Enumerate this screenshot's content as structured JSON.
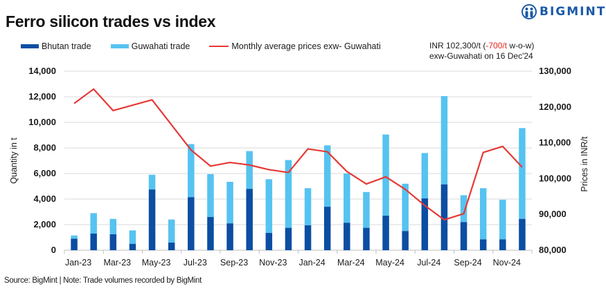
{
  "header": {
    "title": "Ferro silicon trades vs index",
    "logo_text": "BIGMINT",
    "logo_icon": "bigmint-people-icon"
  },
  "legend": {
    "items": [
      {
        "label": "Bhutan trade",
        "type": "bar",
        "color": "#0b4ea2"
      },
      {
        "label": "Guwahati trade",
        "type": "bar",
        "color": "#56c3f0"
      },
      {
        "label": "Monthly average prices exw- Guwahati",
        "type": "line",
        "color": "#e53935"
      }
    ]
  },
  "price_note": {
    "line1_prefix": "INR 102,300/t  (",
    "line1_change": "-700/t",
    "line1_suffix": "  w-o-w)",
    "line2": "exw-Guwahati  on 16 Dec'24"
  },
  "footer": {
    "source": "Source: BigMint | Note: Trade volumes recorded by BigMint"
  },
  "chart_data": {
    "type": "bar",
    "stacked": true,
    "title": "Ferro silicon trades vs index",
    "categories": [
      "Jan-23",
      "Feb-23",
      "Mar-23",
      "Apr-23",
      "May-23",
      "Jun-23",
      "Jul-23",
      "Aug-23",
      "Sep-23",
      "Oct-23",
      "Nov-23",
      "Dec-23",
      "Jan-24",
      "Feb-24",
      "Mar-24",
      "Apr-24",
      "May-24",
      "Jun-24",
      "Jul-24",
      "Aug-24",
      "Sep-24",
      "Oct-24",
      "Nov-24",
      "Dec-24"
    ],
    "x_tick_labels": [
      "Jan-23",
      "Mar-23",
      "May-23",
      "Jul-23",
      "Sep-23",
      "Nov-23",
      "Jan-24",
      "Mar-24",
      "May-24",
      "Jul-24",
      "Sep-24",
      "Nov-24"
    ],
    "series": [
      {
        "name": "Bhutan trade",
        "type": "bar",
        "axis": "left",
        "color": "#0b4ea2",
        "values": [
          900,
          1300,
          1250,
          500,
          4750,
          600,
          4150,
          2600,
          2100,
          4800,
          1350,
          1750,
          1950,
          3400,
          2150,
          1750,
          2700,
          1500,
          4050,
          5150,
          2200,
          850,
          850,
          2450
        ]
      },
      {
        "name": "Guwahati trade",
        "type": "bar",
        "axis": "left",
        "color": "#56c3f0",
        "values": [
          250,
          1600,
          1200,
          1050,
          1150,
          1800,
          4150,
          3350,
          3250,
          2950,
          4200,
          5300,
          2900,
          4800,
          3850,
          2800,
          6350,
          3700,
          3550,
          6900,
          2100,
          4000,
          3100,
          7100
        ]
      },
      {
        "name": "Monthly average prices exw- Guwahati",
        "type": "line",
        "axis": "right",
        "color": "#e53935",
        "values": [
          121000,
          125000,
          119000,
          120500,
          122000,
          115000,
          108000,
          103500,
          104500,
          103800,
          102500,
          101700,
          108300,
          107500,
          102000,
          98500,
          100500,
          97000,
          92500,
          88500,
          90200,
          107300,
          109000,
          103200
        ]
      }
    ],
    "xlabel": "",
    "ylabel": "Quantity in t",
    "y2label": "Prices in INR/t",
    "ylim": [
      0,
      14000
    ],
    "y_ticks": [
      0,
      2000,
      4000,
      6000,
      8000,
      10000,
      12000,
      14000
    ],
    "y_tick_labels": [
      "0",
      "2,000",
      "4,000",
      "6,000",
      "8,000",
      "10,000",
      "12,000",
      "14,000"
    ],
    "y2lim": [
      80000,
      130000
    ],
    "y2_ticks": [
      80000,
      90000,
      100000,
      110000,
      120000,
      130000
    ],
    "y2_tick_labels": [
      "80,000",
      "90,000",
      "100,000",
      "110,000",
      "120,000",
      "130,000"
    ],
    "grid": true,
    "legend_position": "top"
  }
}
